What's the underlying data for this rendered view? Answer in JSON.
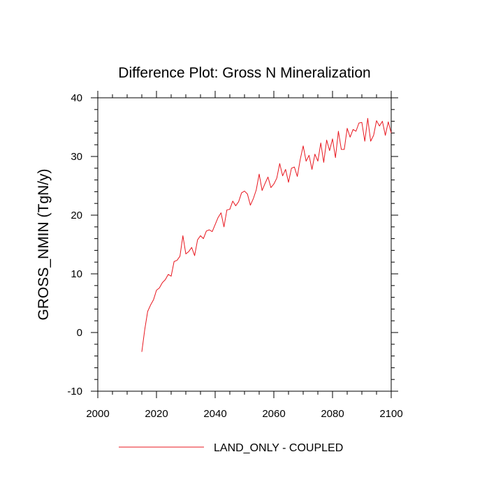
{
  "chart_data": {
    "type": "line",
    "title": "Difference Plot: Gross N Mineralization",
    "xlabel": "",
    "ylabel": "GROSS_NMIN  (TgN/y)",
    "xlim": [
      2000,
      2100
    ],
    "ylim": [
      -10,
      40
    ],
    "x_ticks": [
      2000,
      2020,
      2040,
      2060,
      2080,
      2100
    ],
    "y_ticks": [
      -10,
      0,
      10,
      20,
      30,
      40
    ],
    "x_tick_labels": [
      "2000",
      "2020",
      "2040",
      "2060",
      "2080",
      "2100"
    ],
    "y_tick_labels": [
      "-10",
      "0",
      "10",
      "20",
      "30",
      "40"
    ],
    "grid": false,
    "legend_position": "bottom",
    "series": [
      {
        "name": "LAND_ONLY - COUPLED",
        "color": "#e8171f",
        "x_start": 2015,
        "x_step": 1,
        "values": [
          -3.3,
          0.5,
          3.6,
          4.7,
          5.6,
          7.2,
          7.6,
          8.5,
          9.0,
          9.9,
          9.6,
          12.1,
          12.3,
          13.0,
          16.5,
          13.4,
          13.8,
          14.5,
          13.1,
          15.8,
          16.5,
          16.0,
          17.3,
          17.5,
          17.2,
          18.4,
          19.6,
          20.4,
          18.0,
          20.9,
          21.0,
          22.4,
          21.6,
          22.3,
          23.8,
          24.1,
          23.6,
          21.7,
          22.8,
          24.3,
          27.0,
          24.2,
          25.4,
          26.5,
          24.7,
          25.3,
          26.3,
          28.8,
          26.7,
          27.8,
          25.6,
          28.0,
          28.2,
          26.6,
          29.5,
          31.8,
          29.2,
          30.2,
          27.8,
          30.4,
          29.2,
          32.3,
          29.0,
          32.8,
          31.0,
          33.0,
          29.8,
          34.3,
          31.2,
          31.2,
          34.8,
          33.3,
          34.6,
          34.3,
          35.7,
          35.8,
          32.6,
          36.5,
          32.6,
          33.6,
          36.1,
          35.2,
          36.0,
          33.6,
          35.9,
          34.0
        ]
      }
    ]
  }
}
